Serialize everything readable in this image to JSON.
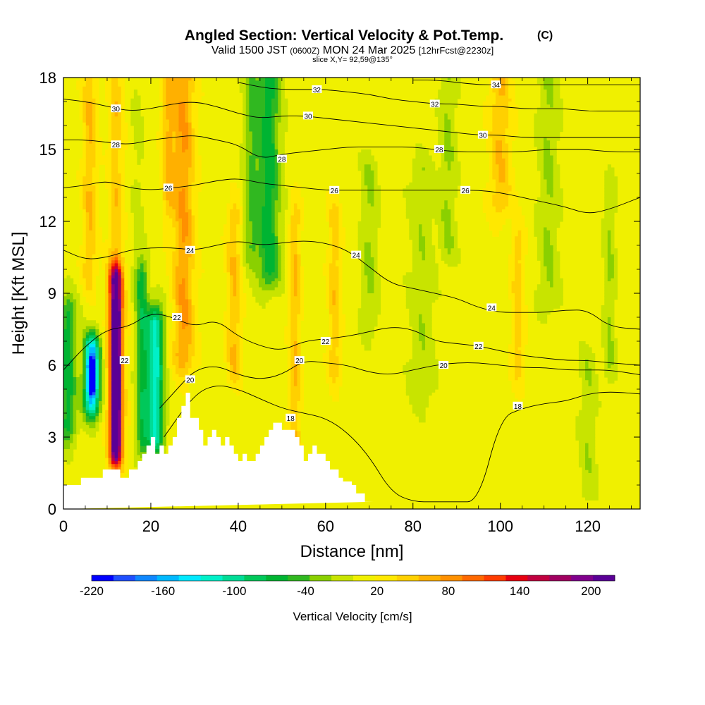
{
  "chart_data": {
    "type": "heatmap",
    "title": "Angled Section: Vertical Velocity & Pot.Temp.",
    "title_unit": "(C)",
    "subtitle_prefix": "Valid 1500 JST",
    "subtitle_utc": "(0600Z)",
    "subtitle_date": "MON 24 Mar 2025",
    "subtitle_fcst": "[12hrFcst@2230z]",
    "slice_label": "slice X,Y= 92,59@135°",
    "xlabel": "Distance [nm]",
    "ylabel": "Height [Kft MSL]",
    "xlim": [
      0,
      132
    ],
    "ylim": [
      0,
      18
    ],
    "x_ticks": [
      0,
      20,
      40,
      60,
      80,
      100,
      120
    ],
    "y_ticks": [
      0,
      3,
      6,
      9,
      12,
      15,
      18
    ],
    "colorbar": {
      "label": "Vertical Velocity [cm/s]",
      "range": [
        -220,
        220
      ],
      "tick_values": [
        -220,
        -160,
        -100,
        -40,
        20,
        80,
        140,
        200
      ],
      "colors": [
        "#0000ff",
        "#1f4fff",
        "#0f87ff",
        "#00b8ff",
        "#00e8ff",
        "#00f0c8",
        "#00dc96",
        "#00c85a",
        "#00b432",
        "#30b820",
        "#8ad000",
        "#c8e400",
        "#f0f000",
        "#ffe800",
        "#ffd000",
        "#ffb000",
        "#ff9000",
        "#ff6800",
        "#ff3c00",
        "#e60010",
        "#c00040",
        "#a00060",
        "#80008c",
        "#5a0096"
      ]
    },
    "terrain_profile": {
      "x": [
        0,
        4,
        4,
        9,
        9,
        13,
        13,
        15,
        15,
        17,
        17,
        18,
        18,
        19,
        19,
        20,
        20,
        21,
        21,
        22,
        22,
        23,
        23,
        24,
        24,
        25,
        25,
        26,
        26,
        27,
        27,
        28,
        28,
        29,
        29,
        31,
        31,
        32,
        32,
        33,
        33,
        34,
        34,
        35,
        35,
        36,
        36,
        37,
        37,
        38,
        38,
        39,
        39,
        40,
        40,
        41,
        41,
        42,
        42,
        44,
        44,
        45,
        45,
        46,
        46,
        47,
        47,
        48,
        48,
        49,
        49,
        50,
        50,
        53,
        53,
        54,
        54,
        55,
        55,
        56,
        56,
        57,
        57,
        58,
        58,
        60,
        60,
        61,
        61,
        63,
        63,
        64,
        64,
        66,
        66,
        67,
        67,
        69,
        69,
        71,
        71,
        132
      ],
      "z": [
        1.0,
        1.0,
        1.3,
        1.3,
        1.65,
        1.65,
        1.3,
        1.3,
        1.65,
        1.65,
        2.0,
        2.0,
        2.3,
        2.3,
        2.65,
        2.65,
        3.0,
        3.0,
        2.3,
        2.3,
        2.65,
        2.65,
        2.3,
        2.3,
        2.65,
        2.65,
        3.0,
        3.0,
        3.8,
        3.8,
        4.3,
        4.3,
        4.85,
        4.85,
        3.8,
        3.8,
        3.3,
        3.3,
        2.65,
        2.65,
        3.0,
        3.0,
        3.3,
        3.3,
        3.0,
        3.0,
        2.65,
        2.65,
        3.0,
        3.0,
        2.65,
        2.65,
        2.3,
        2.3,
        2.0,
        2.0,
        2.3,
        2.3,
        2.0,
        2.0,
        2.3,
        2.3,
        2.65,
        2.65,
        3.0,
        3.0,
        3.3,
        3.3,
        3.6,
        3.6,
        3.6,
        3.6,
        3.3,
        3.3,
        3.0,
        3.0,
        2.65,
        2.65,
        2.0,
        2.0,
        2.3,
        2.3,
        2.65,
        2.65,
        2.3,
        2.3,
        2.0,
        2.0,
        1.65,
        1.65,
        1.3,
        1.3,
        1.15,
        1.15,
        1.0,
        1.0,
        0.65,
        0.65,
        0.3,
        0.3,
        0.3
      ]
    },
    "isentropes": [
      {
        "theta": 18,
        "labels": [
          {
            "text": "18",
            "x": 52,
            "z": 3.8
          },
          {
            "text": "18",
            "x": 104,
            "z": 4.3
          }
        ],
        "x": [
          23,
          30,
          35,
          40,
          45,
          50,
          55,
          60,
          65,
          70,
          75,
          80,
          85,
          90,
          95,
          100,
          105,
          110,
          115,
          120,
          125,
          132
        ],
        "z": [
          3.0,
          4.8,
          5.2,
          5.0,
          4.6,
          4.2,
          4.0,
          3.8,
          3.2,
          2.2,
          0.7,
          0.3,
          0.3,
          0.3,
          0.3,
          3.8,
          4.2,
          4.4,
          4.5,
          4.8,
          4.9,
          4.8
        ]
      },
      {
        "theta": 20,
        "labels": [
          {
            "text": "20",
            "x": 29,
            "z": 5.4
          },
          {
            "text": "20",
            "x": 54,
            "z": 6.2
          },
          {
            "text": "20",
            "x": 87,
            "z": 6.0
          }
        ],
        "x": [
          22,
          26,
          30,
          35,
          40,
          45,
          50,
          55,
          60,
          65,
          70,
          75,
          80,
          85,
          90,
          95,
          100,
          105,
          110,
          115,
          120,
          125,
          132
        ],
        "z": [
          4.2,
          5.0,
          5.8,
          6.0,
          5.6,
          5.4,
          5.6,
          6.2,
          6.1,
          6.0,
          5.7,
          5.6,
          5.8,
          6.0,
          6.1,
          6.1,
          6.0,
          5.9,
          5.9,
          5.8,
          5.8,
          5.8,
          5.6
        ]
      },
      {
        "theta": 22,
        "labels": [
          {
            "text": "22",
            "x": 14,
            "z": 6.2
          },
          {
            "text": "22",
            "x": 26,
            "z": 8.0
          },
          {
            "text": "22",
            "x": 60,
            "z": 7.0
          },
          {
            "text": "22",
            "x": 95,
            "z": 6.8
          }
        ],
        "x": [
          0,
          5,
          10,
          15,
          20,
          25,
          30,
          35,
          40,
          45,
          50,
          55,
          60,
          65,
          70,
          75,
          80,
          85,
          90,
          95,
          100,
          105,
          110,
          115,
          120,
          125,
          132
        ],
        "z": [
          5.8,
          6.8,
          7.5,
          7.6,
          8.2,
          8.0,
          7.6,
          7.9,
          7.2,
          6.8,
          6.6,
          7.0,
          7.1,
          7.2,
          7.4,
          7.6,
          7.5,
          7.0,
          6.9,
          6.8,
          6.6,
          6.4,
          6.3,
          6.2,
          6.2,
          6.1,
          6.0
        ]
      },
      {
        "theta": 24,
        "labels": [
          {
            "text": "24",
            "x": 29,
            "z": 10.8
          },
          {
            "text": "24",
            "x": 67,
            "z": 10.6
          },
          {
            "text": "24",
            "x": 98,
            "z": 8.4
          }
        ],
        "x": [
          0,
          5,
          10,
          15,
          20,
          25,
          30,
          35,
          40,
          45,
          50,
          55,
          60,
          65,
          70,
          75,
          80,
          85,
          90,
          95,
          100,
          105,
          110,
          115,
          120,
          125,
          132
        ],
        "z": [
          10.8,
          10.4,
          10.5,
          10.8,
          10.9,
          10.9,
          10.8,
          11.0,
          11.2,
          11.0,
          11.1,
          11.2,
          11.1,
          10.8,
          10.1,
          9.4,
          9.2,
          9.0,
          8.8,
          8.4,
          8.2,
          8.2,
          8.2,
          8.3,
          8.3,
          7.6,
          7.5
        ]
      },
      {
        "theta": 26,
        "labels": [
          {
            "text": "26",
            "x": 24,
            "z": 13.4
          },
          {
            "text": "26",
            "x": 62,
            "z": 13.3
          },
          {
            "text": "26",
            "x": 92,
            "z": 13.3
          }
        ],
        "x": [
          0,
          5,
          10,
          15,
          20,
          25,
          30,
          35,
          40,
          45,
          50,
          55,
          60,
          65,
          70,
          75,
          80,
          85,
          90,
          95,
          100,
          105,
          110,
          115,
          120,
          125,
          132
        ],
        "z": [
          13.4,
          13.5,
          13.7,
          13.4,
          13.3,
          13.4,
          13.5,
          13.7,
          13.8,
          13.6,
          13.5,
          13.4,
          13.3,
          13.3,
          13.3,
          13.3,
          13.3,
          13.3,
          13.3,
          13.3,
          13.2,
          13.0,
          12.8,
          12.6,
          12.3,
          12.5,
          13.0
        ]
      },
      {
        "theta": 28,
        "labels": [
          {
            "text": "28",
            "x": 12,
            "z": 15.2
          },
          {
            "text": "28",
            "x": 50,
            "z": 14.6
          },
          {
            "text": "28",
            "x": 86,
            "z": 15.0
          }
        ],
        "x": [
          0,
          5,
          10,
          15,
          20,
          25,
          30,
          35,
          40,
          45,
          50,
          55,
          60,
          65,
          70,
          75,
          80,
          85,
          90,
          95,
          100,
          105,
          110,
          115,
          120,
          125,
          132
        ],
        "z": [
          15.4,
          15.4,
          15.3,
          15.2,
          15.4,
          15.5,
          15.6,
          15.4,
          15.2,
          14.6,
          14.8,
          14.9,
          15.0,
          15.1,
          15.1,
          15.1,
          15.1,
          15.0,
          14.9,
          14.9,
          14.9,
          14.9,
          15.0,
          15.0,
          15.0,
          14.9,
          14.9
        ]
      },
      {
        "theta": 30,
        "labels": [
          {
            "text": "30",
            "x": 12,
            "z": 16.7
          },
          {
            "text": "30",
            "x": 56,
            "z": 16.4
          },
          {
            "text": "30",
            "x": 96,
            "z": 15.6
          }
        ],
        "x": [
          0,
          5,
          10,
          15,
          20,
          25,
          30,
          35,
          40,
          45,
          50,
          55,
          60,
          65,
          70,
          75,
          80,
          85,
          90,
          95,
          100,
          105,
          110,
          115,
          120,
          125,
          132
        ],
        "z": [
          17.1,
          17.0,
          16.8,
          16.6,
          16.7,
          16.9,
          17.0,
          16.8,
          16.5,
          16.3,
          16.4,
          16.4,
          16.3,
          16.2,
          16.1,
          16.0,
          15.9,
          15.8,
          15.7,
          15.6,
          15.6,
          15.5,
          15.5,
          15.5,
          15.5,
          15.5,
          15.5
        ]
      },
      {
        "theta": 32,
        "labels": [
          {
            "text": "32",
            "x": 58,
            "z": 17.5
          },
          {
            "text": "32",
            "x": 85,
            "z": 16.9
          }
        ],
        "x": [
          40,
          45,
          50,
          55,
          60,
          65,
          70,
          75,
          80,
          85,
          90,
          95,
          100,
          105,
          110,
          115,
          120,
          125,
          132
        ],
        "z": [
          17.8,
          17.6,
          17.5,
          17.5,
          17.5,
          17.4,
          17.3,
          17.1,
          17.0,
          16.9,
          16.9,
          16.8,
          16.8,
          16.7,
          16.7,
          16.7,
          16.6,
          16.6,
          16.6
        ]
      },
      {
        "theta": 34,
        "labels": [
          {
            "text": "34",
            "x": 99,
            "z": 17.7
          }
        ],
        "x": [
          80,
          85,
          90,
          95,
          100,
          105,
          110,
          115,
          120,
          125,
          132
        ],
        "z": [
          17.9,
          17.9,
          17.8,
          17.7,
          17.7,
          17.7,
          17.7,
          17.7,
          17.7,
          17.7,
          17.7
        ]
      }
    ],
    "features": [
      {
        "x": 1,
        "z0": 3.6,
        "z1": 8.0,
        "hw": 2.0,
        "hh": 1.0,
        "v": -75,
        "profile": "column"
      },
      {
        "x": 6.5,
        "z0": 4.5,
        "z1": 6.6,
        "hw": 1.8,
        "hh": 0.8,
        "v": -160,
        "profile": "cell"
      },
      {
        "x": 6.5,
        "z0": 5.2,
        "z1": 5.9,
        "hw": 0.8,
        "hh": 0.4,
        "v": -210,
        "profile": "cell"
      },
      {
        "x": 12,
        "z0": 2.4,
        "z1": 9.5,
        "hw": 1.6,
        "hh": 0.8,
        "v": 180,
        "profile": "cell"
      },
      {
        "x": 12,
        "z0": 3.0,
        "z1": 8.0,
        "hw": 0.7,
        "hh": 0.6,
        "v": 220,
        "profile": "cell"
      },
      {
        "x": 18,
        "z0": 3.0,
        "z1": 9.5,
        "hw": 1.4,
        "hh": 1.0,
        "v": -70,
        "profile": "cell"
      },
      {
        "x": 21,
        "z0": 3.2,
        "z1": 7.6,
        "hw": 1.9,
        "hh": 1.0,
        "v": -130,
        "profile": "cell"
      },
      {
        "x": 27.5,
        "z0": 6.5,
        "z1": 18,
        "hw": 2.4,
        "hh": 1.0,
        "v": 65,
        "profile": "column"
      },
      {
        "x": 24,
        "z0": 13,
        "z1": 18,
        "hw": 1.5,
        "hh": 1.0,
        "v": 45,
        "profile": "column"
      },
      {
        "x": 12,
        "z0": 9.5,
        "z1": 18,
        "hw": 1.6,
        "hh": 1.0,
        "v": 40,
        "profile": "column"
      },
      {
        "x": 6,
        "z0": 10,
        "z1": 18,
        "hw": 1.6,
        "hh": 1.0,
        "v": 45,
        "profile": "column"
      },
      {
        "x": 17,
        "z0": 9.5,
        "z1": 18,
        "hw": 1.4,
        "hh": 1.0,
        "v": -15,
        "profile": "column"
      },
      {
        "x": 47,
        "z0": 10,
        "z1": 18,
        "hw": 2.6,
        "hh": 1.0,
        "v": -75,
        "profile": "column"
      },
      {
        "x": 43,
        "z0": 11,
        "z1": 18,
        "hw": 1.8,
        "hh": 1.0,
        "v": -45,
        "profile": "column"
      },
      {
        "x": 39,
        "z0": 6,
        "z1": 12,
        "hw": 1.6,
        "hh": 1.0,
        "v": 45,
        "profile": "column"
      },
      {
        "x": 53,
        "z0": 2,
        "z1": 12,
        "hw": 1.3,
        "hh": 1.0,
        "v": 45,
        "profile": "column"
      },
      {
        "x": 62,
        "z0": 6,
        "z1": 12,
        "hw": 1.4,
        "hh": 1.0,
        "v": 40,
        "profile": "column"
      },
      {
        "x": 70,
        "z0": 8,
        "z1": 14,
        "hw": 2.0,
        "hh": 1.0,
        "v": -30,
        "profile": "column"
      },
      {
        "x": 82,
        "z0": 5,
        "z1": 14,
        "hw": 3.0,
        "hh": 1.0,
        "v": -25,
        "profile": "column"
      },
      {
        "x": 88,
        "z0": 11,
        "z1": 18,
        "hw": 2.0,
        "hh": 1.0,
        "v": -30,
        "profile": "column"
      },
      {
        "x": 100,
        "z0": 13,
        "z1": 18,
        "hw": 2.5,
        "hh": 1.0,
        "v": 45,
        "profile": "column"
      },
      {
        "x": 104,
        "z0": 6,
        "z1": 11,
        "hw": 1.5,
        "hh": 1.0,
        "v": 35,
        "profile": "column"
      },
      {
        "x": 111,
        "z0": 9,
        "z1": 18,
        "hw": 2.5,
        "hh": 1.0,
        "v": -30,
        "profile": "column"
      },
      {
        "x": 120,
        "z0": 1,
        "z1": 6,
        "hw": 2.0,
        "hh": 1.0,
        "v": -25,
        "profile": "column"
      },
      {
        "x": 125,
        "z0": 6,
        "z1": 13,
        "hw": 1.4,
        "hh": 1.0,
        "v": -30,
        "profile": "column"
      }
    ]
  }
}
